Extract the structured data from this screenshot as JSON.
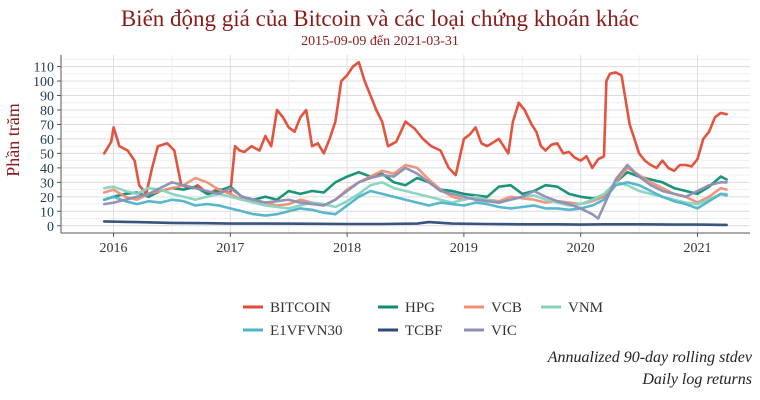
{
  "chart_data": {
    "type": "line",
    "title": "Biến động giá của Bitcoin và các loại chứng khoán khác",
    "subtitle": "2015-09-09 đến 2021-03-31",
    "ylabel": "Phần trăm",
    "xlabel": "",
    "ylim": [
      -5,
      118
    ],
    "xlim": [
      2015.55,
      2021.45
    ],
    "yticks": [
      0,
      10,
      20,
      30,
      40,
      50,
      60,
      70,
      80,
      90,
      100,
      110
    ],
    "xticks": [
      2016,
      2017,
      2018,
      2019,
      2020,
      2021
    ],
    "xtick_labels": [
      "2016",
      "2017",
      "2018",
      "2019",
      "2020",
      "2021"
    ],
    "legend": "bottom",
    "captions": [
      "Annualized 90-day rolling stdev",
      "Daily log returns"
    ],
    "series": [
      {
        "name": "BITCOIN",
        "color": "#e24b36",
        "x": [
          2015.92,
          2015.98,
          2016.0,
          2016.05,
          2016.12,
          2016.18,
          2016.22,
          2016.28,
          2016.33,
          2016.38,
          2016.42,
          2016.46,
          2016.52,
          2016.58,
          2016.62,
          2016.68,
          2016.72,
          2016.78,
          2016.82,
          2016.88,
          2016.92,
          2016.96,
          2017.0,
          2017.04,
          2017.08,
          2017.12,
          2017.18,
          2017.25,
          2017.3,
          2017.35,
          2017.4,
          2017.45,
          2017.5,
          2017.55,
          2017.6,
          2017.65,
          2017.7,
          2017.75,
          2017.8,
          2017.85,
          2017.9,
          2017.95,
          2018.0,
          2018.05,
          2018.1,
          2018.15,
          2018.2,
          2018.25,
          2018.3,
          2018.35,
          2018.42,
          2018.5,
          2018.58,
          2018.65,
          2018.72,
          2018.8,
          2018.87,
          2018.93,
          2019.0,
          2019.05,
          2019.1,
          2019.15,
          2019.2,
          2019.3,
          2019.38,
          2019.42,
          2019.47,
          2019.52,
          2019.58,
          2019.62,
          2019.66,
          2019.7,
          2019.75,
          2019.8,
          2019.85,
          2019.9,
          2019.95,
          2020.0,
          2020.05,
          2020.1,
          2020.15,
          2020.2,
          2020.22,
          2020.25,
          2020.3,
          2020.35,
          2020.42,
          2020.46,
          2020.5,
          2020.55,
          2020.6,
          2020.65,
          2020.7,
          2020.75,
          2020.8,
          2020.85,
          2020.9,
          2020.95,
          2021.0,
          2021.05,
          2021.1,
          2021.15,
          2021.2,
          2021.25
        ],
        "y": [
          50,
          58,
          68,
          55,
          52,
          45,
          28,
          22,
          40,
          55,
          56,
          57,
          52,
          28,
          27,
          26,
          28,
          24,
          22,
          25,
          25,
          24,
          22,
          55,
          52,
          51,
          55,
          52,
          62,
          55,
          80,
          75,
          68,
          65,
          75,
          80,
          55,
          57,
          50,
          60,
          72,
          100,
          104,
          110,
          113,
          100,
          90,
          80,
          72,
          55,
          58,
          72,
          67,
          60,
          55,
          52,
          40,
          35,
          60,
          63,
          68,
          57,
          55,
          60,
          50,
          72,
          85,
          80,
          70,
          65,
          55,
          52,
          56,
          57,
          50,
          51,
          47,
          45,
          48,
          40,
          46,
          48,
          100,
          105,
          106,
          104,
          70,
          60,
          50,
          45,
          42,
          40,
          45,
          40,
          38,
          42,
          42,
          41,
          46,
          60,
          65,
          75,
          78,
          77
        ]
      },
      {
        "name": "HPG",
        "color": "#0f8f71",
        "x": [
          2015.92,
          2016.0,
          2016.1,
          2016.2,
          2016.3,
          2016.4,
          2016.5,
          2016.6,
          2016.7,
          2016.8,
          2016.9,
          2017.0,
          2017.1,
          2017.2,
          2017.3,
          2017.4,
          2017.5,
          2017.6,
          2017.7,
          2017.8,
          2017.9,
          2018.0,
          2018.1,
          2018.2,
          2018.3,
          2018.4,
          2018.5,
          2018.6,
          2018.7,
          2018.8,
          2018.9,
          2019.0,
          2019.1,
          2019.2,
          2019.3,
          2019.4,
          2019.5,
          2019.6,
          2019.7,
          2019.8,
          2019.9,
          2020.0,
          2020.1,
          2020.2,
          2020.3,
          2020.4,
          2020.5,
          2020.6,
          2020.7,
          2020.8,
          2020.9,
          2021.0,
          2021.1,
          2021.2,
          2021.25
        ],
        "y": [
          18,
          20,
          22,
          23,
          20,
          24,
          26,
          25,
          27,
          22,
          24,
          27,
          20,
          18,
          20,
          18,
          24,
          22,
          24,
          23,
          30,
          34,
          37,
          34,
          36,
          30,
          28,
          33,
          30,
          25,
          24,
          22,
          21,
          20,
          27,
          28,
          22,
          24,
          28,
          27,
          22,
          20,
          19,
          20,
          30,
          37,
          34,
          32,
          30,
          26,
          24,
          22,
          27,
          34,
          32
        ]
      },
      {
        "name": "VCB",
        "color": "#f08f78",
        "x": [
          2015.92,
          2016.0,
          2016.1,
          2016.2,
          2016.3,
          2016.4,
          2016.5,
          2016.6,
          2016.7,
          2016.8,
          2016.9,
          2017.0,
          2017.1,
          2017.2,
          2017.3,
          2017.4,
          2017.5,
          2017.6,
          2017.7,
          2017.8,
          2017.9,
          2018.0,
          2018.1,
          2018.2,
          2018.3,
          2018.4,
          2018.5,
          2018.6,
          2018.7,
          2018.8,
          2018.9,
          2019.0,
          2019.1,
          2019.2,
          2019.3,
          2019.4,
          2019.5,
          2019.6,
          2019.7,
          2019.8,
          2019.9,
          2020.0,
          2020.1,
          2020.2,
          2020.3,
          2020.4,
          2020.5,
          2020.6,
          2020.7,
          2020.8,
          2020.9,
          2021.0,
          2021.1,
          2021.2,
          2021.25
        ],
        "y": [
          23,
          25,
          20,
          18,
          22,
          24,
          26,
          28,
          33,
          30,
          25,
          22,
          18,
          17,
          16,
          14,
          15,
          18,
          16,
          14,
          18,
          25,
          30,
          34,
          38,
          36,
          42,
          40,
          32,
          25,
          20,
          18,
          20,
          18,
          17,
          20,
          19,
          18,
          16,
          17,
          16,
          15,
          17,
          20,
          30,
          40,
          35,
          30,
          26,
          22,
          20,
          16,
          20,
          26,
          25
        ]
      },
      {
        "name": "VNM",
        "color": "#86d4c0",
        "x": [
          2015.92,
          2016.0,
          2016.1,
          2016.2,
          2016.3,
          2016.4,
          2016.5,
          2016.6,
          2016.7,
          2016.8,
          2016.9,
          2017.0,
          2017.1,
          2017.2,
          2017.3,
          2017.4,
          2017.5,
          2017.6,
          2017.7,
          2017.8,
          2017.9,
          2018.0,
          2018.1,
          2018.2,
          2018.3,
          2018.4,
          2018.5,
          2018.6,
          2018.7,
          2018.8,
          2018.9,
          2019.0,
          2019.1,
          2019.2,
          2019.3,
          2019.4,
          2019.5,
          2019.6,
          2019.7,
          2019.8,
          2019.9,
          2020.0,
          2020.1,
          2020.2,
          2020.3,
          2020.4,
          2020.5,
          2020.6,
          2020.7,
          2020.8,
          2020.9,
          2021.0,
          2021.1,
          2021.2,
          2021.25
        ],
        "y": [
          26,
          27,
          24,
          22,
          26,
          25,
          22,
          20,
          18,
          20,
          22,
          20,
          18,
          16,
          14,
          13,
          12,
          14,
          16,
          15,
          13,
          17,
          22,
          28,
          30,
          26,
          24,
          22,
          20,
          18,
          16,
          18,
          20,
          18,
          16,
          18,
          20,
          21,
          18,
          16,
          14,
          15,
          18,
          22,
          30,
          28,
          24,
          22,
          20,
          18,
          16,
          15,
          18,
          22,
          22
        ]
      },
      {
        "name": "E1VFVN30",
        "color": "#4fb3c9",
        "x": [
          2015.92,
          2016.0,
          2016.1,
          2016.2,
          2016.3,
          2016.4,
          2016.5,
          2016.6,
          2016.7,
          2016.8,
          2016.9,
          2017.0,
          2017.1,
          2017.2,
          2017.3,
          2017.4,
          2017.5,
          2017.6,
          2017.7,
          2017.8,
          2017.9,
          2018.0,
          2018.1,
          2018.2,
          2018.3,
          2018.4,
          2018.5,
          2018.6,
          2018.7,
          2018.8,
          2018.9,
          2019.0,
          2019.1,
          2019.2,
          2019.3,
          2019.4,
          2019.5,
          2019.6,
          2019.7,
          2019.8,
          2019.9,
          2020.0,
          2020.1,
          2020.2,
          2020.3,
          2020.4,
          2020.5,
          2020.6,
          2020.7,
          2020.8,
          2020.9,
          2021.0,
          2021.1,
          2021.2,
          2021.25
        ],
        "y": [
          18,
          20,
          17,
          15,
          17,
          16,
          18,
          17,
          14,
          15,
          14,
          12,
          10,
          8,
          7,
          8,
          10,
          12,
          11,
          9,
          8,
          14,
          20,
          24,
          22,
          20,
          18,
          16,
          14,
          16,
          15,
          14,
          16,
          15,
          13,
          12,
          13,
          14,
          12,
          12,
          11,
          12,
          14,
          18,
          28,
          30,
          28,
          24,
          20,
          17,
          15,
          12,
          17,
          22,
          21
        ]
      },
      {
        "name": "TCBF",
        "color": "#2f4a78",
        "x": [
          2015.92,
          2016.2,
          2016.5,
          2016.8,
          2017.0,
          2017.3,
          2017.6,
          2018.0,
          2018.3,
          2018.6,
          2018.7,
          2018.9,
          2019.2,
          2019.5,
          2019.8,
          2020.0,
          2020.2,
          2020.5,
          2020.8,
          2021.0,
          2021.25
        ],
        "y": [
          3,
          2.5,
          2,
          1.8,
          1.5,
          1.5,
          1.4,
          1.2,
          1.2,
          1.5,
          2.5,
          1.5,
          1.2,
          1,
          1,
          0.8,
          1,
          1,
          0.8,
          0.8,
          0.6
        ]
      },
      {
        "name": "VIC",
        "color": "#8c8fb3",
        "x": [
          2015.92,
          2016.0,
          2016.1,
          2016.2,
          2016.3,
          2016.4,
          2016.5,
          2016.6,
          2016.7,
          2016.8,
          2016.9,
          2017.0,
          2017.1,
          2017.2,
          2017.3,
          2017.4,
          2017.5,
          2017.6,
          2017.7,
          2017.8,
          2017.9,
          2018.0,
          2018.1,
          2018.2,
          2018.3,
          2018.4,
          2018.5,
          2018.6,
          2018.7,
          2018.8,
          2018.9,
          2019.0,
          2019.1,
          2019.2,
          2019.3,
          2019.4,
          2019.5,
          2019.6,
          2019.7,
          2019.8,
          2019.9,
          2020.0,
          2020.1,
          2020.15,
          2020.2,
          2020.3,
          2020.4,
          2020.5,
          2020.6,
          2020.7,
          2020.8,
          2020.9,
          2021.0,
          2021.1,
          2021.2,
          2021.25
        ],
        "y": [
          15,
          16,
          18,
          20,
          22,
          26,
          30,
          28,
          26,
          24,
          22,
          26,
          20,
          18,
          16,
          17,
          18,
          16,
          15,
          14,
          18,
          24,
          30,
          33,
          35,
          34,
          40,
          36,
          30,
          24,
          22,
          20,
          18,
          17,
          16,
          18,
          20,
          24,
          20,
          17,
          15,
          12,
          8,
          5,
          14,
          32,
          42,
          34,
          28,
          24,
          22,
          20,
          24,
          28,
          30,
          30
        ]
      }
    ]
  }
}
